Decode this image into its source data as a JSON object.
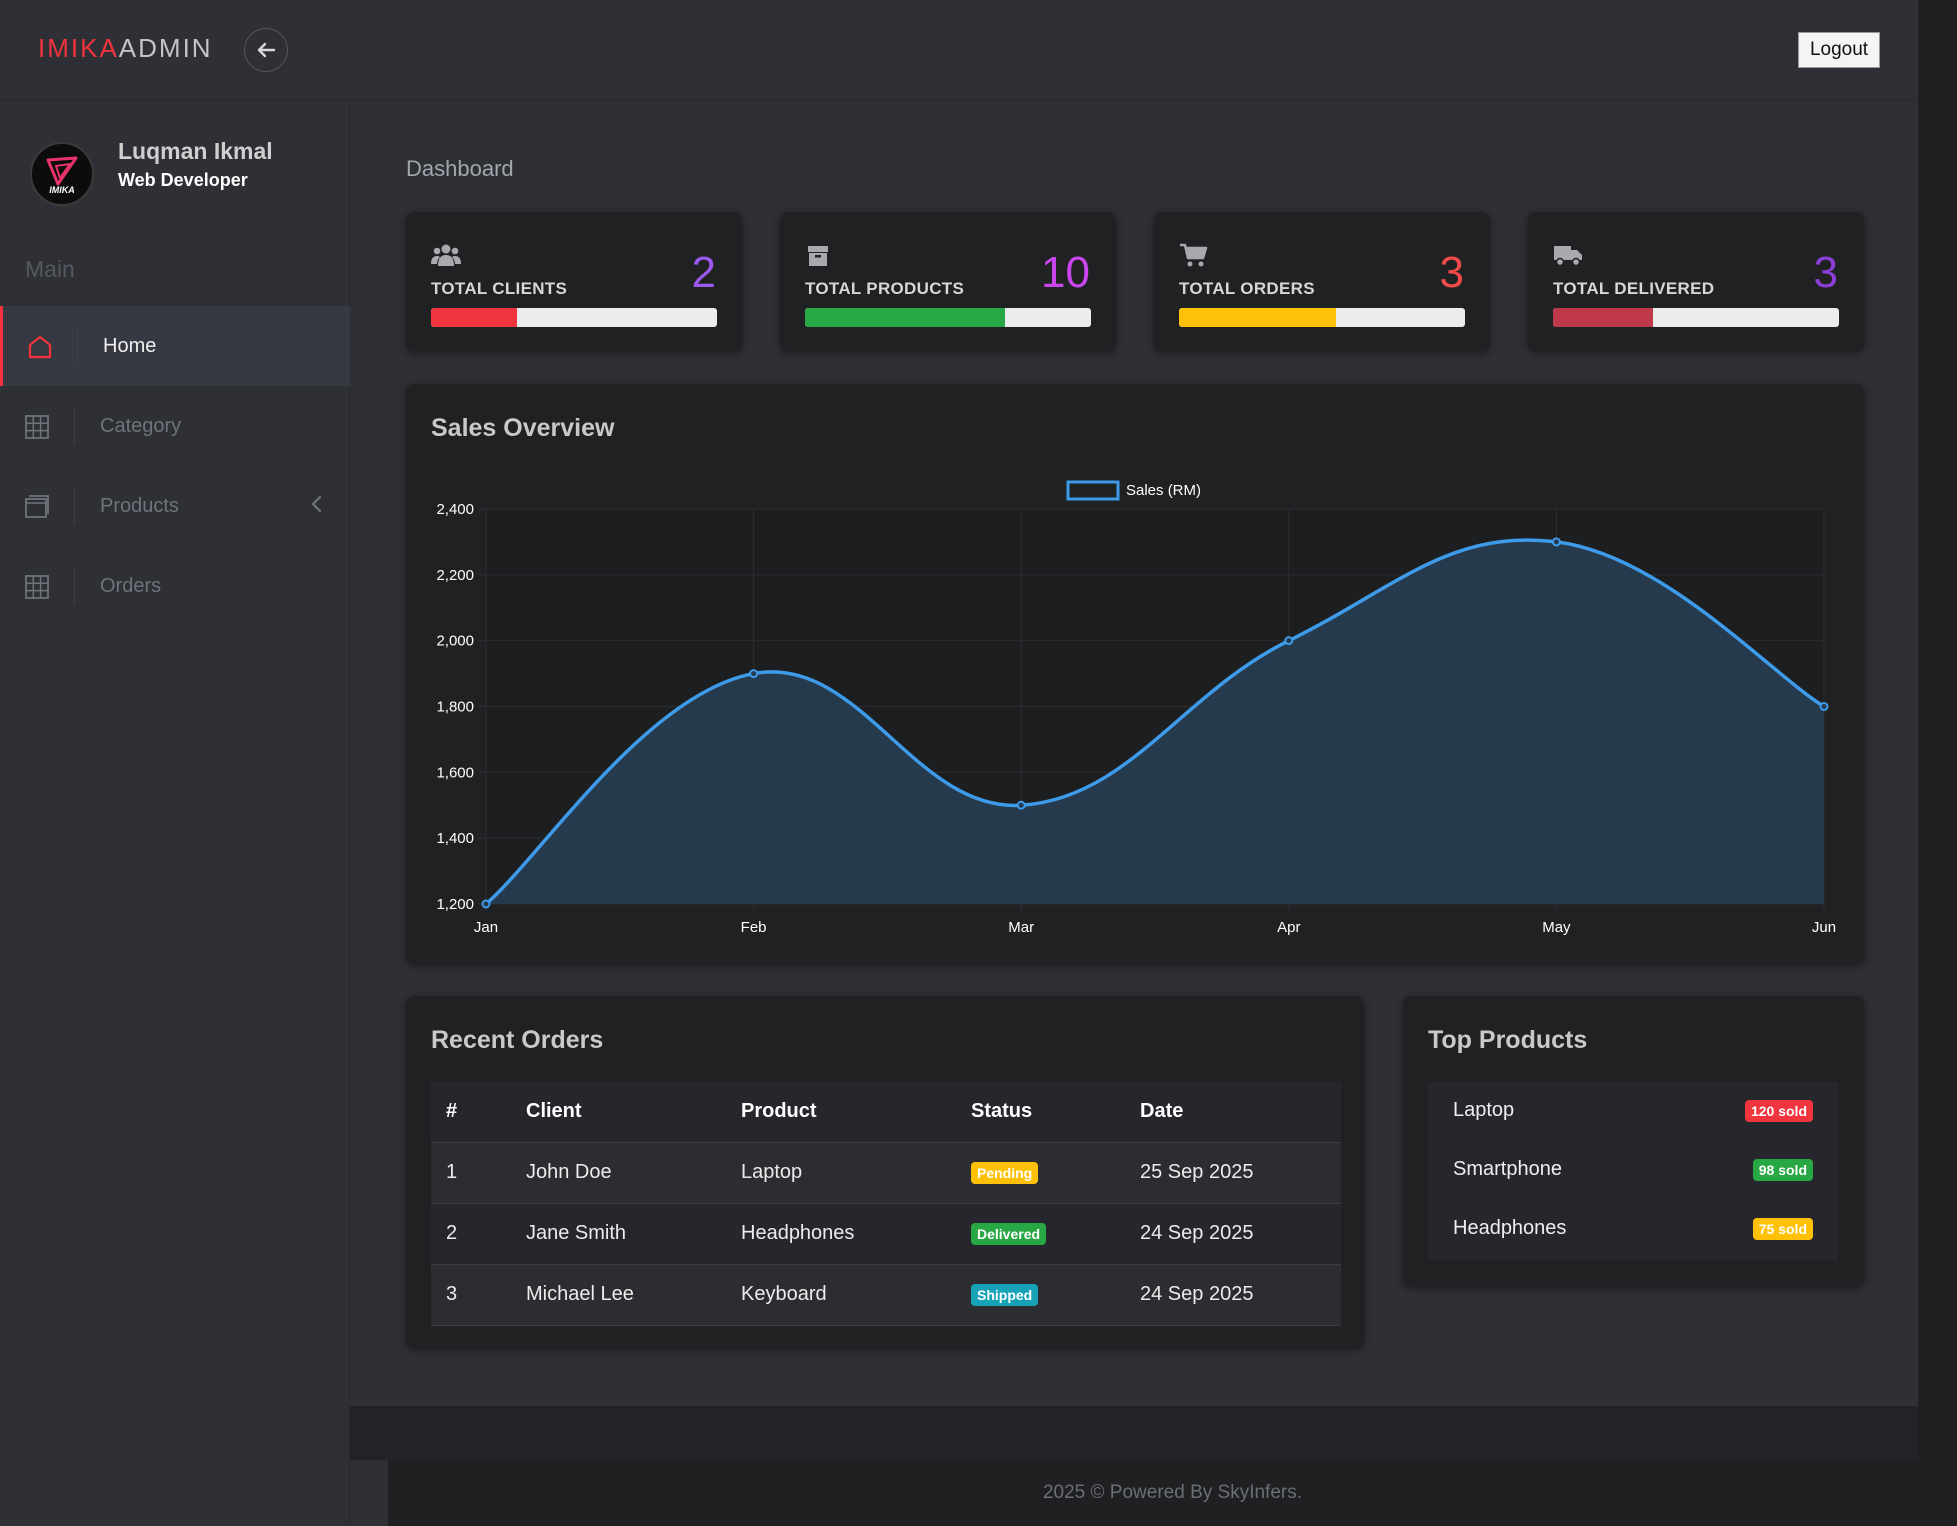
{
  "brand": {
    "part1": "IMIKA",
    "part2": "ADMIN"
  },
  "topbar": {
    "logout_label": "Logout",
    "back_icon": "arrow-left-icon"
  },
  "user": {
    "name": "Luqman Ikmal",
    "role": "Web Developer",
    "avatar_text": "IMIKA"
  },
  "sidebar": {
    "heading": "Main",
    "items": [
      {
        "label": "Home",
        "icon": "home-icon",
        "active": true
      },
      {
        "label": "Category",
        "icon": "grid-icon",
        "active": false
      },
      {
        "label": "Products",
        "icon": "window-icon",
        "active": false
      },
      {
        "label": "Orders",
        "icon": "grid-icon",
        "active": false
      }
    ]
  },
  "page": {
    "title": "Dashboard"
  },
  "stats": [
    {
      "label": "TOTAL CLIENTS",
      "value": "2",
      "icon": "users-icon",
      "value_color": "#9b59f0",
      "bar_color": "#f0353e",
      "progress": 0.3
    },
    {
      "label": "TOTAL PRODUCTS",
      "value": "10",
      "icon": "box-icon",
      "value_color": "#cc46f0",
      "bar_color": "#28a745",
      "progress": 0.7
    },
    {
      "label": "TOTAL ORDERS",
      "value": "3",
      "icon": "cart-icon",
      "value_color": "#f04a4a",
      "bar_color": "#ffc107",
      "progress": 0.55
    },
    {
      "label": "TOTAL DELIVERED",
      "value": "3",
      "icon": "truck-icon",
      "value_color": "#8c3fd6",
      "bar_color": "#c0394b",
      "progress": 0.35
    }
  ],
  "sales": {
    "title": "Sales Overview"
  },
  "chart_data": {
    "type": "area",
    "title": "Sales Overview",
    "categories": [
      "Jan",
      "Feb",
      "Mar",
      "Apr",
      "May",
      "Jun"
    ],
    "series": [
      {
        "name": "Sales (RM)",
        "values": [
          1200,
          1900,
          1500,
          2000,
          2300,
          1800
        ]
      }
    ],
    "y_ticks": [
      "1,200",
      "1,400",
      "1,600",
      "1,800",
      "2,000",
      "2,200",
      "2,400"
    ],
    "ylim": [
      1200,
      2400
    ],
    "legend": "top-center",
    "grid": true,
    "line_color": "#3d9be9",
    "fill_color": "#263a4d"
  },
  "recent_orders": {
    "title": "Recent Orders",
    "columns": [
      "#",
      "Client",
      "Product",
      "Status",
      "Date"
    ],
    "rows": [
      {
        "num": "1",
        "client": "John Doe",
        "product": "Laptop",
        "status": "Pending",
        "status_color": "#ffc107",
        "date": "25 Sep 2025"
      },
      {
        "num": "2",
        "client": "Jane Smith",
        "product": "Headphones",
        "status": "Delivered",
        "status_color": "#28a745",
        "date": "24 Sep 2025"
      },
      {
        "num": "3",
        "client": "Michael Lee",
        "product": "Keyboard",
        "status": "Shipped",
        "status_color": "#17a2b8",
        "date": "24 Sep 2025"
      }
    ]
  },
  "top_products": {
    "title": "Top Products",
    "items": [
      {
        "name": "Laptop",
        "sold": "120 sold",
        "color": "#f0353e"
      },
      {
        "name": "Smartphone",
        "sold": "98 sold",
        "color": "#28a745"
      },
      {
        "name": "Headphones",
        "sold": "75 sold",
        "color": "#ffc107"
      }
    ]
  },
  "footer": {
    "text": "2025 © Powered By SkyInfers."
  }
}
